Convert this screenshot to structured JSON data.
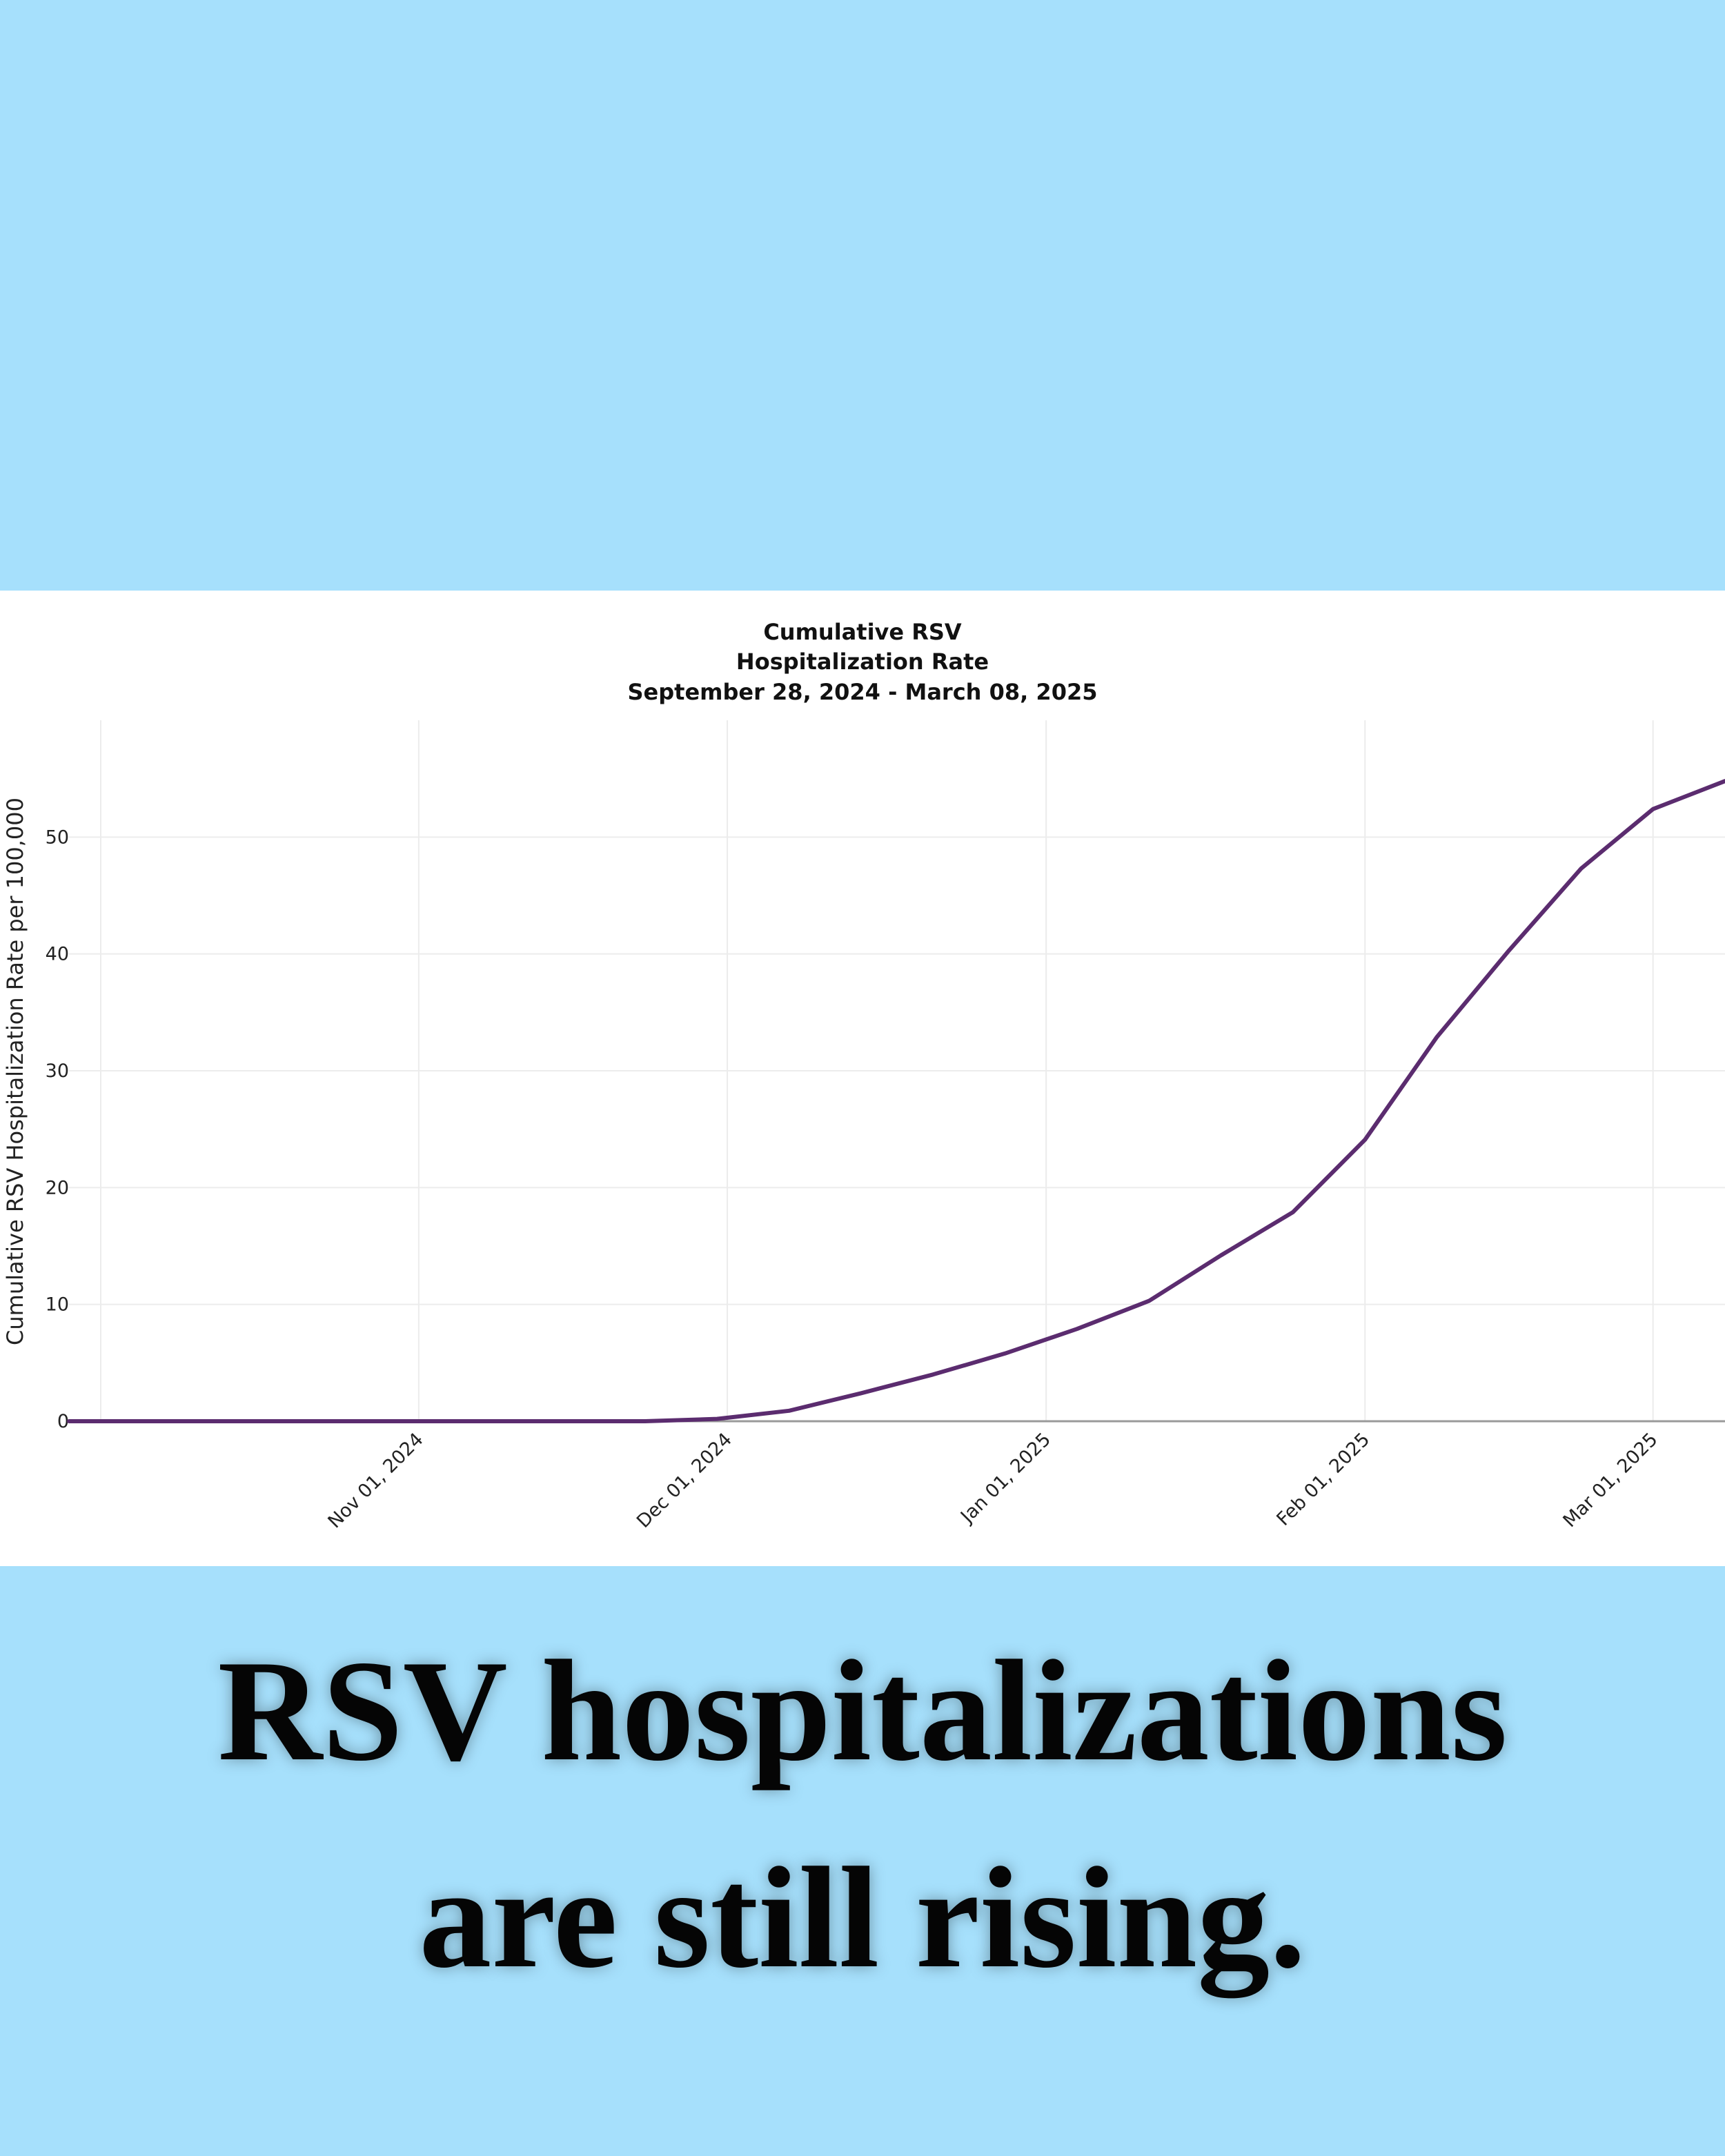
{
  "chart_data": {
    "type": "line",
    "title_lines": [
      "Cumulative RSV",
      "Hospitalization Rate",
      "September 28, 2024 - March 08, 2025"
    ],
    "xlabel": "",
    "ylabel": "Cumulative RSV Hospitalization Rate per 100,000",
    "y_ticks": [
      0,
      10,
      20,
      30,
      40,
      50
    ],
    "ylim": [
      0,
      60
    ],
    "x_ticks": [
      {
        "date": "2024-11-01",
        "label": "Nov 01, 2024"
      },
      {
        "date": "2024-12-01",
        "label": "Dec 01, 2024"
      },
      {
        "date": "2025-01-01",
        "label": "Jan 01, 2025"
      },
      {
        "date": "2025-02-01",
        "label": "Feb 01, 2025"
      },
      {
        "date": "2025-03-01",
        "label": "Mar 01, 2025"
      }
    ],
    "xlim": [
      "2024-09-28",
      "2025-03-08"
    ],
    "grid": true,
    "line_color": "#5b2c6f",
    "series": [
      {
        "points": [
          {
            "x": "2024-09-28",
            "y": 0
          },
          {
            "x": "2024-10-05",
            "y": 0
          },
          {
            "x": "2024-10-12",
            "y": 0
          },
          {
            "x": "2024-10-19",
            "y": 0
          },
          {
            "x": "2024-10-26",
            "y": 0
          },
          {
            "x": "2024-11-02",
            "y": 0
          },
          {
            "x": "2024-11-09",
            "y": 0
          },
          {
            "x": "2024-11-16",
            "y": 0
          },
          {
            "x": "2024-11-23",
            "y": 0
          },
          {
            "x": "2024-11-30",
            "y": 0.2
          },
          {
            "x": "2024-12-07",
            "y": 0.9
          },
          {
            "x": "2024-12-14",
            "y": 2.4
          },
          {
            "x": "2024-12-21",
            "y": 4.0
          },
          {
            "x": "2024-12-28",
            "y": 5.8
          },
          {
            "x": "2025-01-04",
            "y": 7.9
          },
          {
            "x": "2025-01-11",
            "y": 10.3
          },
          {
            "x": "2025-01-18",
            "y": 14.2
          },
          {
            "x": "2025-01-25",
            "y": 17.9
          },
          {
            "x": "2025-02-01",
            "y": 24.1
          },
          {
            "x": "2025-02-08",
            "y": 32.9
          },
          {
            "x": "2025-02-15",
            "y": 40.3
          },
          {
            "x": "2025-02-22",
            "y": 47.3
          },
          {
            "x": "2025-03-01",
            "y": 52.4
          },
          {
            "x": "2025-03-08",
            "y": 54.8
          }
        ]
      }
    ]
  },
  "caption": {
    "line1": "RSV hospitalizations",
    "line2": "are still rising."
  },
  "colors": {
    "background": "#a6e0fc",
    "panel": "#ffffff",
    "text": "#050505"
  }
}
